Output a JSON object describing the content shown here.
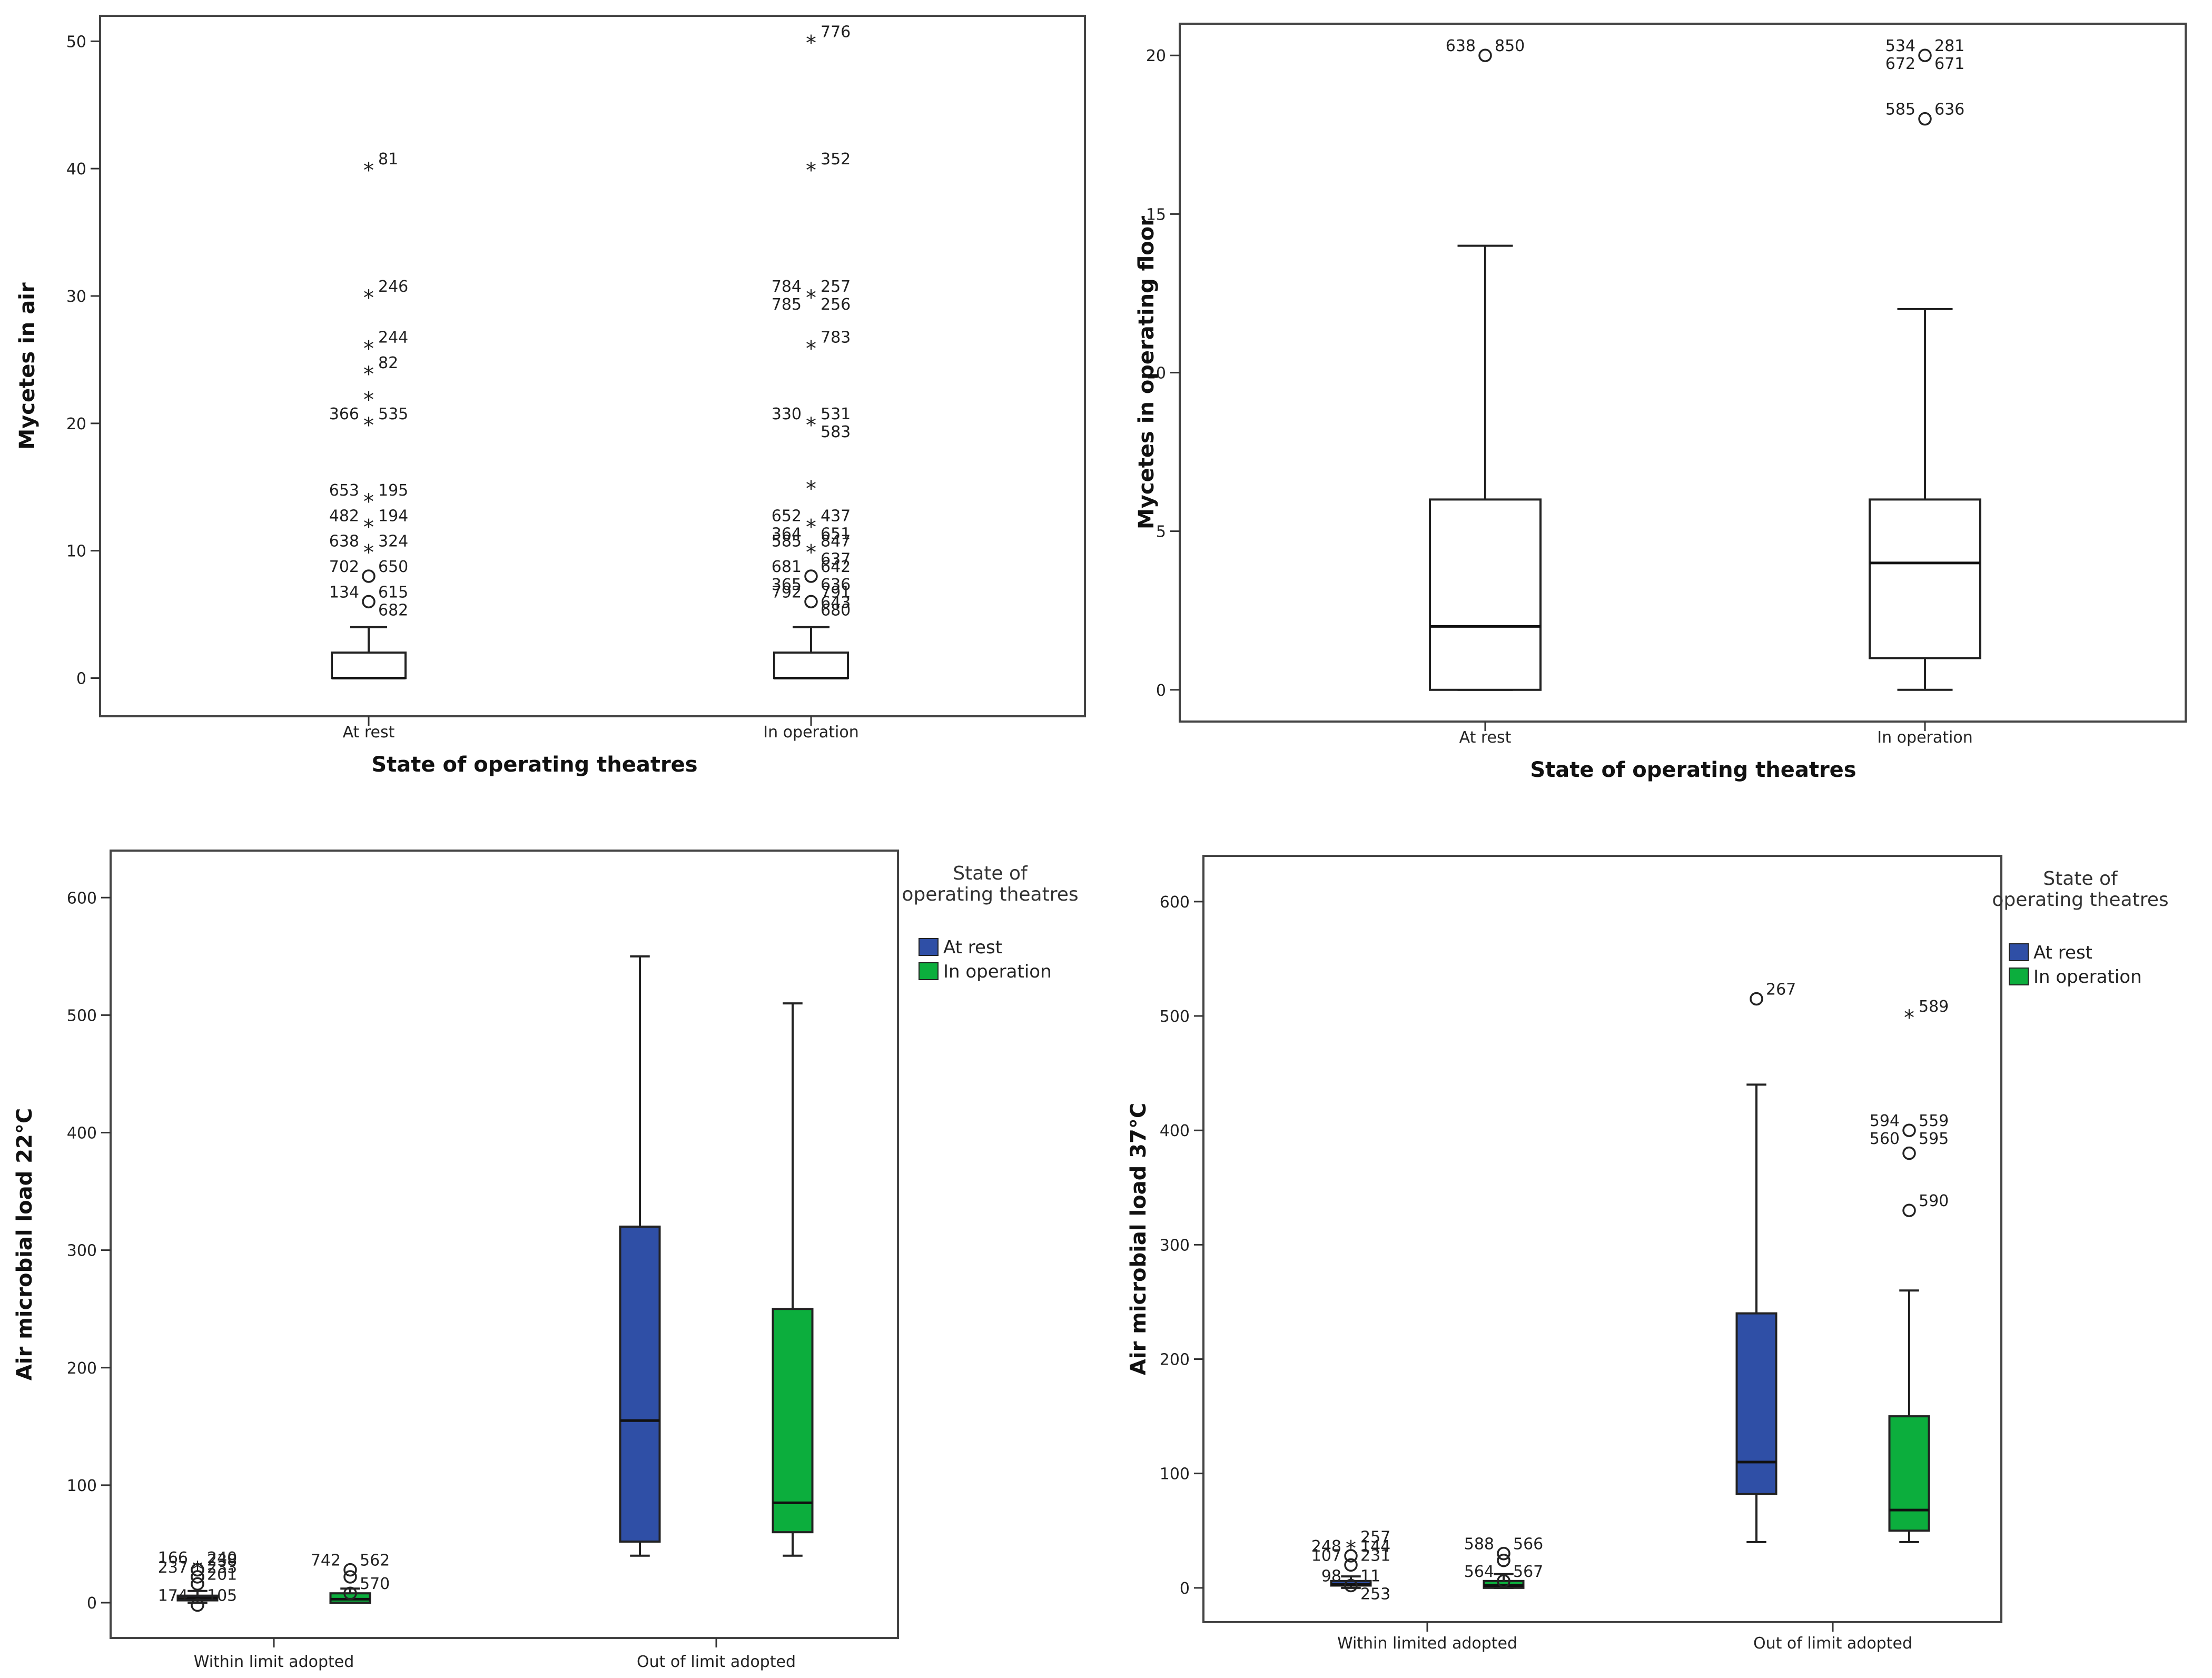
{
  "chart_data": [
    {
      "type": "boxplot",
      "title": "",
      "xlabel": "State of operating theatres",
      "ylabel": "Mycetes in air",
      "ylim": [
        -3,
        52
      ],
      "yticks": [
        0,
        10,
        20,
        30,
        40,
        50
      ],
      "legend": null,
      "groups": [
        {
          "category": "At rest",
          "boxes": [
            {
              "series": "All",
              "color": "#ffffff",
              "min": 0,
              "q1": 0,
              "median": 0,
              "q3": 2,
              "max": 4,
              "outliers": [
                {
                  "y": 40,
                  "kind": "star",
                  "labels": [
                    "81"
                  ]
                },
                {
                  "y": 30,
                  "kind": "star",
                  "labels": [
                    "246"
                  ]
                },
                {
                  "y": 26,
                  "kind": "star",
                  "labels": [
                    "244"
                  ]
                },
                {
                  "y": 24,
                  "kind": "star",
                  "labels": [
                    "82"
                  ]
                },
                {
                  "y": 22,
                  "kind": "star",
                  "labels": []
                },
                {
                  "y": 20,
                  "kind": "star",
                  "labels": [
                    "535",
                    "366"
                  ]
                },
                {
                  "y": 14,
                  "kind": "star",
                  "labels": [
                    "195",
                    "653"
                  ]
                },
                {
                  "y": 12,
                  "kind": "star",
                  "labels": [
                    "194",
                    "482"
                  ]
                },
                {
                  "y": 10,
                  "kind": "star",
                  "labels": [
                    "324",
                    "638"
                  ]
                },
                {
                  "y": 8,
                  "kind": "circle",
                  "labels": [
                    "650",
                    "702"
                  ]
                },
                {
                  "y": 6,
                  "kind": "circle",
                  "labels": [
                    "615",
                    "134",
                    "682"
                  ]
                }
              ]
            }
          ]
        },
        {
          "category": "In operation",
          "boxes": [
            {
              "series": "All",
              "color": "#ffffff",
              "min": 0,
              "q1": 0,
              "median": 0,
              "q3": 2,
              "max": 4,
              "outliers": [
                {
                  "y": 50,
                  "kind": "star",
                  "labels": [
                    "776"
                  ]
                },
                {
                  "y": 40,
                  "kind": "star",
                  "labels": [
                    "352"
                  ]
                },
                {
                  "y": 30,
                  "kind": "star",
                  "labels": [
                    "257",
                    "784",
                    "256",
                    "785"
                  ]
                },
                {
                  "y": 26,
                  "kind": "star",
                  "labels": [
                    "783"
                  ]
                },
                {
                  "y": 20,
                  "kind": "star",
                  "labels": [
                    "531",
                    "330",
                    "583"
                  ]
                },
                {
                  "y": 15,
                  "kind": "star",
                  "labels": []
                },
                {
                  "y": 12,
                  "kind": "star",
                  "labels": [
                    "437",
                    "652",
                    "651",
                    "364"
                  ]
                },
                {
                  "y": 10,
                  "kind": "star",
                  "labels": [
                    "847",
                    "585",
                    "637"
                  ]
                },
                {
                  "y": 8,
                  "kind": "circle",
                  "labels": [
                    "642",
                    "681",
                    "636",
                    "365",
                    "643"
                  ]
                },
                {
                  "y": 6,
                  "kind": "circle",
                  "labels": [
                    "791",
                    "792",
                    "680"
                  ]
                }
              ]
            }
          ]
        }
      ]
    },
    {
      "type": "boxplot",
      "title": "",
      "xlabel": "State of operating theatres",
      "ylabel": "Mycetes in operating floor",
      "ylim": [
        -1,
        21
      ],
      "yticks": [
        0,
        5,
        10,
        15,
        20
      ],
      "legend": null,
      "groups": [
        {
          "category": "At rest",
          "boxes": [
            {
              "series": "All",
              "color": "#ffffff",
              "min": 0,
              "q1": 0,
              "median": 2,
              "q3": 6,
              "max": 14,
              "outliers": [
                {
                  "y": 20,
                  "kind": "circle",
                  "labels": [
                    "850",
                    "638"
                  ]
                }
              ]
            }
          ]
        },
        {
          "category": "In operation",
          "boxes": [
            {
              "series": "All",
              "color": "#ffffff",
              "min": 0,
              "q1": 1,
              "median": 4,
              "q3": 6,
              "max": 12,
              "outliers": [
                {
                  "y": 20,
                  "kind": "circle",
                  "labels": [
                    "281",
                    "534",
                    "671",
                    "672"
                  ]
                },
                {
                  "y": 18,
                  "kind": "circle",
                  "labels": [
                    "636",
                    "585"
                  ]
                }
              ]
            }
          ]
        }
      ]
    },
    {
      "type": "boxplot",
      "title": "",
      "xlabel": "",
      "ylabel": "Air microbial load 22°C",
      "ylim": [
        -30,
        640
      ],
      "yticks": [
        0,
        100,
        200,
        300,
        400,
        500,
        600
      ],
      "legend": {
        "title": "State of operating theatres",
        "entries": [
          {
            "label": "At rest",
            "color": "#2f4fa6"
          },
          {
            "label": "In operation",
            "color": "#0cae3d"
          }
        ],
        "placement": "right"
      },
      "groups": [
        {
          "category": "Within limit adopted",
          "boxes": [
            {
              "series": "At rest",
              "color": "#2f4fa6",
              "min": 0,
              "q1": 2,
              "median": 4,
              "q3": 6,
              "max": 10,
              "outliers": [
                {
                  "y": 30,
                  "kind": "star",
                  "labels": [
                    "240",
                    "166"
                  ]
                },
                {
                  "y": 28,
                  "kind": "circle",
                  "labels": [
                    "238"
                  ]
                },
                {
                  "y": 22,
                  "kind": "circle",
                  "labels": [
                    "233",
                    "237"
                  ]
                },
                {
                  "y": 16,
                  "kind": "circle",
                  "labels": [
                    "201"
                  ]
                },
                {
                  "y": -2,
                  "kind": "circle",
                  "labels": [
                    "105",
                    "174"
                  ]
                }
              ]
            },
            {
              "series": "In operation",
              "color": "#0cae3d",
              "min": 0,
              "q1": 0,
              "median": 3,
              "q3": 8,
              "max": 12,
              "outliers": [
                {
                  "y": 28,
                  "kind": "circle",
                  "labels": [
                    "562",
                    "742"
                  ]
                },
                {
                  "y": 22,
                  "kind": "circle",
                  "labels": []
                },
                {
                  "y": 8,
                  "kind": "circle",
                  "labels": [
                    "570"
                  ]
                }
              ]
            }
          ]
        },
        {
          "category": "Out of limit adopted",
          "boxes": [
            {
              "series": "At rest",
              "color": "#2f4fa6",
              "min": 40,
              "q1": 52,
              "median": 155,
              "q3": 320,
              "max": 550,
              "outliers": []
            },
            {
              "series": "In operation",
              "color": "#0cae3d",
              "min": 40,
              "q1": 60,
              "median": 85,
              "q3": 250,
              "max": 510,
              "outliers": []
            }
          ]
        }
      ]
    },
    {
      "type": "boxplot",
      "title": "",
      "xlabel": "",
      "ylabel": "Air microbial load 37°C",
      "ylim": [
        -30,
        640
      ],
      "yticks": [
        0,
        100,
        200,
        300,
        400,
        500,
        600
      ],
      "legend": {
        "title": "State of operating theatres",
        "entries": [
          {
            "label": "At rest",
            "color": "#2f4fa6"
          },
          {
            "label": "In operation",
            "color": "#0cae3d"
          }
        ],
        "placement": "right"
      },
      "groups": [
        {
          "category": "Within limited adopted",
          "boxes": [
            {
              "series": "At rest",
              "color": "#2f4fa6",
              "min": 0,
              "q1": 2,
              "median": 3,
              "q3": 6,
              "max": 10,
              "outliers": [
                {
                  "y": 36,
                  "kind": "star",
                  "labels": [
                    "257"
                  ]
                },
                {
                  "y": 28,
                  "kind": "circle",
                  "labels": [
                    "144",
                    "248"
                  ]
                },
                {
                  "y": 20,
                  "kind": "circle",
                  "labels": [
                    "231",
                    "107"
                  ]
                },
                {
                  "y": 2,
                  "kind": "circle",
                  "labels": [
                    "11",
                    "98",
                    "253"
                  ]
                }
              ]
            },
            {
              "series": "In operation",
              "color": "#0cae3d",
              "min": 0,
              "q1": 0,
              "median": 2,
              "q3": 6,
              "max": 12,
              "outliers": [
                {
                  "y": 30,
                  "kind": "circle",
                  "labels": [
                    "566",
                    "588"
                  ]
                },
                {
                  "y": 24,
                  "kind": "circle",
                  "labels": []
                },
                {
                  "y": 6,
                  "kind": "circle",
                  "labels": [
                    "567",
                    "564"
                  ]
                }
              ]
            }
          ]
        },
        {
          "category": "Out of limit adopted",
          "boxes": [
            {
              "series": "At rest",
              "color": "#2f4fa6",
              "min": 40,
              "q1": 82,
              "median": 110,
              "q3": 240,
              "max": 440,
              "outliers": [
                {
                  "y": 515,
                  "kind": "circle",
                  "labels": [
                    "267"
                  ]
                }
              ]
            },
            {
              "series": "In operation",
              "color": "#0cae3d",
              "min": 40,
              "q1": 50,
              "median": 68,
              "q3": 150,
              "max": 260,
              "outliers": [
                {
                  "y": 500,
                  "kind": "star",
                  "labels": [
                    "589"
                  ]
                },
                {
                  "y": 400,
                  "kind": "circle",
                  "labels": [
                    "559",
                    "594",
                    "595",
                    "560"
                  ]
                },
                {
                  "y": 380,
                  "kind": "circle",
                  "labels": []
                },
                {
                  "y": 330,
                  "kind": "circle",
                  "labels": [
                    "590"
                  ]
                }
              ]
            }
          ]
        }
      ]
    }
  ]
}
